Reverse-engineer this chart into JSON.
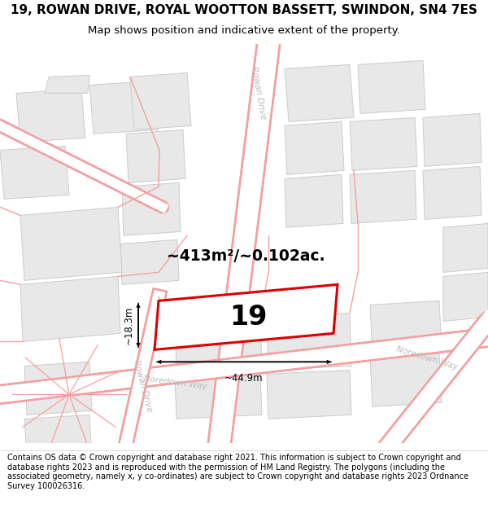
{
  "title": "19, ROWAN DRIVE, ROYAL WOOTTON BASSETT, SWINDON, SN4 7ES",
  "subtitle": "Map shows position and indicative extent of the property.",
  "footer": "Contains OS data © Crown copyright and database right 2021. This information is subject to Crown copyright and database rights 2023 and is reproduced with the permission of HM Land Registry. The polygons (including the associated geometry, namely x, y co-ordinates) are subject to Crown copyright and database rights 2023 Ordnance Survey 100026316.",
  "map_bg": "#ffffff",
  "parcel_fill": "#e8e8e8",
  "parcel_edge": "#cccccc",
  "road_color": "#f5a0a0",
  "property_outline_color": "#dd0000",
  "property_fill": "#ffffff",
  "area_text": "~413m²/~0.102ac.",
  "number_text": "19",
  "dim_width": "~44.9m",
  "dim_height": "~18.3m",
  "road_label_rowan": "Rowan Drive",
  "road_label_noredown1": "Noredown Way",
  "road_label_noredown2": "Noredown Way",
  "title_fontsize": 11,
  "subtitle_fontsize": 9.5,
  "footer_fontsize": 7.0
}
